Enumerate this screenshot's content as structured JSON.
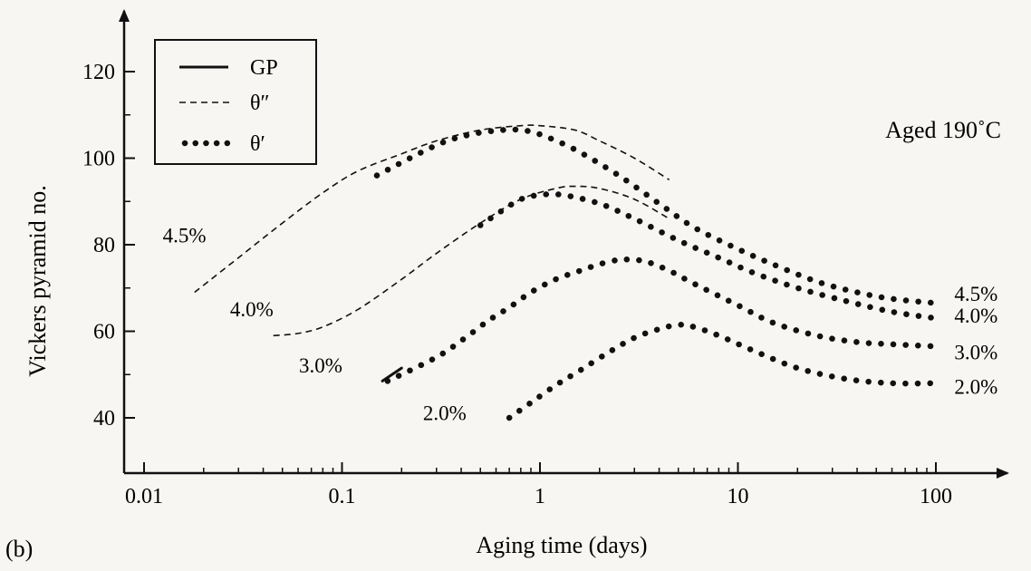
{
  "panel_label": "(b)",
  "chart_data": {
    "type": "line",
    "xlabel": "Aging time (days)",
    "ylabel": "Vickers pyramid no.",
    "x_scale": "log",
    "xlim": [
      0.01,
      150
    ],
    "ylim": [
      35,
      135
    ],
    "x_ticks": [
      0.01,
      0.1,
      1,
      10,
      100
    ],
    "x_tick_labels": [
      "0.01",
      "0.1",
      "1",
      "10",
      "100"
    ],
    "y_ticks": [
      40,
      60,
      80,
      100,
      120
    ],
    "y_tick_labels": [
      "40",
      "60",
      "80",
      "100",
      "120"
    ],
    "annotation": "Aged 190˚C",
    "legend": {
      "placement": "top-left",
      "entries": [
        {
          "label": "GP",
          "style": "solid"
        },
        {
          "label": "θ″",
          "style": "dashed"
        },
        {
          "label": "θ′",
          "style": "dotted"
        }
      ]
    },
    "series": [
      {
        "name": "4.5%",
        "color": "#111111",
        "segments": [
          {
            "phase": "θ″",
            "style": "dashed",
            "x": [
              0.018,
              0.03,
              0.05,
              0.08,
              0.12,
              0.2,
              0.3,
              0.5,
              0.8,
              1.0,
              1.5,
              2.0,
              3.0,
              4.5
            ],
            "y": [
              69,
              77,
              85,
              92,
              97,
              101,
              104,
              106.5,
              107.5,
              107.5,
              106.5,
              104,
              100,
              95
            ]
          },
          {
            "phase": "θ′",
            "style": "dotted",
            "x": [
              0.15,
              0.3,
              0.45,
              0.65,
              0.8,
              1.0,
              1.5,
              2.5,
              4,
              6,
              10,
              15,
              25,
              40,
              60,
              100
            ],
            "y": [
              96,
              103,
              105.5,
              106.5,
              106.5,
              105.5,
              102,
              96,
              89.5,
              84,
              79,
              75.5,
              71.5,
              69,
              67.5,
              66.5
            ]
          }
        ]
      },
      {
        "name": "4.0%",
        "color": "#111111",
        "segments": [
          {
            "phase": "θ″",
            "style": "dashed",
            "x": [
              0.045,
              0.06,
              0.08,
              0.12,
              0.2,
              0.3,
              0.5,
              0.8,
              1.2,
              1.5,
              2.0,
              3.0,
              4.5
            ],
            "y": [
              59,
              59.5,
              61,
              65,
              72,
              78,
              85,
              90.5,
              93,
              93.5,
              93,
              90.5,
              86
            ]
          },
          {
            "phase": "θ′",
            "style": "dotted",
            "x": [
              0.5,
              0.65,
              0.8,
              1.0,
              1.3,
              2.0,
              3.0,
              5,
              8,
              12,
              20,
              35,
              60,
              100
            ],
            "y": [
              84.5,
              88,
              90.5,
              91.5,
              91.5,
              89.5,
              86,
              81,
              77,
              73.5,
              70,
              67,
              64.5,
              63
            ]
          }
        ]
      },
      {
        "name": "3.0%",
        "color": "#111111",
        "segments": [
          {
            "phase": "GP",
            "style": "solid",
            "x": [
              0.16,
              0.2
            ],
            "y": [
              48.5,
              51.5
            ]
          },
          {
            "phase": "θ′",
            "style": "dotted",
            "x": [
              0.17,
              0.3,
              0.42,
              0.55,
              0.7,
              0.9,
              1.2,
              1.6,
              2.0,
              2.5,
              3.0,
              3.5,
              4.5,
              6,
              10,
              15,
              25,
              40,
              60,
              100
            ],
            "y": [
              48.5,
              54,
              58.5,
              62.5,
              65.5,
              69,
              72,
              74,
              75.5,
              76.5,
              76.5,
              76,
              74,
              71,
              66,
              62,
              59,
              57.5,
              57,
              56.5
            ]
          }
        ]
      },
      {
        "name": "2.0%",
        "color": "#111111",
        "segments": [
          {
            "phase": "θ′",
            "style": "dotted",
            "x": [
              0.7,
              0.9,
              1.2,
              1.6,
              2.2,
              3.0,
              4.0,
              5.0,
              6.0,
              8,
              12,
              20,
              35,
              60,
              100
            ],
            "y": [
              40,
              43.5,
              47.5,
              51,
              55,
              58.5,
              60.5,
              61.5,
              61,
              59,
              55.5,
              51.5,
              49,
              48,
              48
            ]
          }
        ]
      }
    ]
  }
}
